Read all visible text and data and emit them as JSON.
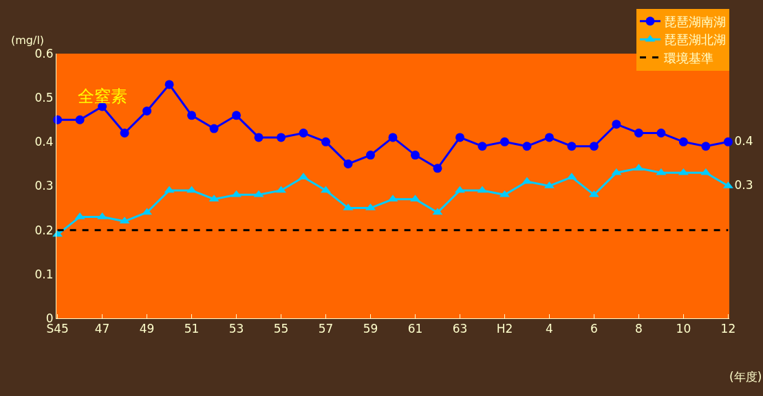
{
  "chart_data": {
    "type": "line",
    "ylabel": "(mg/l)",
    "xlabel": "(年度)",
    "categories": [
      "S45",
      null,
      "47",
      null,
      "49",
      null,
      "51",
      null,
      "53",
      null,
      "55",
      null,
      "57",
      null,
      "59",
      null,
      "61",
      null,
      "63",
      null,
      "H2",
      null,
      "4",
      null,
      "6",
      null,
      "8",
      null,
      "10",
      null,
      "12"
    ],
    "series": [
      {
        "name": "琵琶湖南湖",
        "color": "#0000ff",
        "marker": "circle",
        "values": [
          0.45,
          0.45,
          0.48,
          0.42,
          0.47,
          0.53,
          0.46,
          0.43,
          0.46,
          0.41,
          0.41,
          0.42,
          0.4,
          0.35,
          0.37,
          0.41,
          0.37,
          0.34,
          0.41,
          0.39,
          0.4,
          0.39,
          0.41,
          0.39,
          0.39,
          0.44,
          0.42,
          0.42,
          0.4,
          0.39,
          0.4
        ],
        "value_labels": [
          null,
          null,
          null,
          null,
          null,
          null,
          null,
          null,
          null,
          null,
          null,
          null,
          null,
          null,
          null,
          null,
          null,
          null,
          null,
          null,
          null,
          null,
          null,
          null,
          null,
          null,
          null,
          null,
          null,
          null,
          "0.4"
        ]
      },
      {
        "name": "琵琶湖北湖",
        "color": "#00ccff",
        "marker": "triangle",
        "values": [
          0.19,
          0.23,
          0.23,
          0.22,
          0.24,
          0.29,
          0.29,
          0.27,
          0.28,
          0.28,
          0.29,
          0.32,
          0.29,
          0.25,
          0.25,
          0.27,
          0.27,
          0.24,
          0.29,
          0.29,
          0.28,
          0.31,
          0.3,
          0.32,
          0.28,
          0.33,
          0.34,
          0.33,
          0.33,
          0.33,
          0.3
        ],
        "value_labels": [
          null,
          null,
          null,
          null,
          null,
          null,
          null,
          null,
          null,
          null,
          null,
          null,
          null,
          null,
          null,
          null,
          null,
          null,
          null,
          null,
          null,
          null,
          null,
          null,
          null,
          null,
          null,
          null,
          null,
          null,
          "0.3"
        ]
      }
    ],
    "ref_lines": [
      {
        "axis": "y",
        "value": 0.2,
        "label": "環境基準",
        "color": "#000000",
        "line_style": "dashed"
      }
    ],
    "annotations": [
      "全窒素"
    ],
    "ylim": [
      0,
      0.6
    ],
    "yticks": [
      0,
      0.1,
      0.2,
      0.3,
      0.4,
      0.5,
      0.6
    ],
    "grid": false,
    "legend": "top right"
  }
}
